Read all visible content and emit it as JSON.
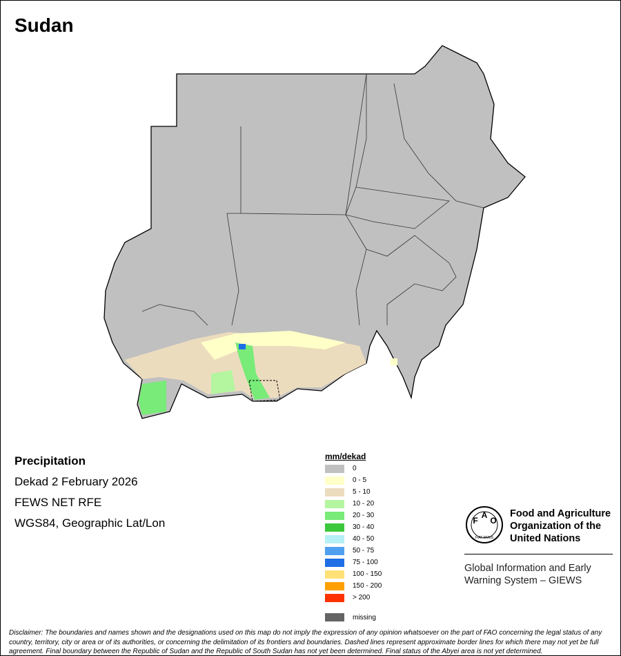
{
  "header": {
    "title": "Sudan"
  },
  "info": {
    "title": "Precipitation",
    "lines": [
      "Dekad 2 February 2026",
      "FEWS NET RFE",
      "WGS84, Geographic Lat/Lon"
    ]
  },
  "legend": {
    "title": "mm/dekad",
    "items": [
      {
        "label": "0",
        "color": "#c0c0c0"
      },
      {
        "label": "0 - 5",
        "color": "#ffffc8"
      },
      {
        "label": "5 - 10",
        "color": "#ecdcbe"
      },
      {
        "label": "10 - 20",
        "color": "#b4f5a0"
      },
      {
        "label": "20 - 30",
        "color": "#78eb78"
      },
      {
        "label": "30 - 40",
        "color": "#3cc83c"
      },
      {
        "label": "40 - 50",
        "color": "#b4f0f5"
      },
      {
        "label": "50 - 75",
        "color": "#50a0f0"
      },
      {
        "label": "75 - 100",
        "color": "#1e6ee6"
      },
      {
        "label": "100 - 150",
        "color": "#ffe178"
      },
      {
        "label": "150 - 200",
        "color": "#ffa000"
      },
      {
        "label": "> 200",
        "color": "#ff3200"
      }
    ],
    "missing": {
      "label": "missing",
      "color": "#646464"
    }
  },
  "logo": {
    "letters": [
      "F",
      "A",
      "O"
    ],
    "motto": "FIAT PANIS",
    "org": [
      "Food and Agriculture",
      "Organization of the",
      "United Nations"
    ],
    "system": [
      "Global Information and Early",
      "Warning System – GIEWS"
    ]
  },
  "disclaimer": "Disclaimer: The boundaries and names shown and the designations used on this map do not imply the expression of any opinion whatsoever on the part of FAO concerning the legal status of any country, territory, city or area or of its authorities, or concerning the delimitation of its frontiers and boundaries. Dashed lines represent approximate border lines for which there may not yet be full agreement.  Final boundary between the Republic of Sudan and the Republic of South Sudan has not yet been determined. Final status of the Abyei area is not yet determined."
}
